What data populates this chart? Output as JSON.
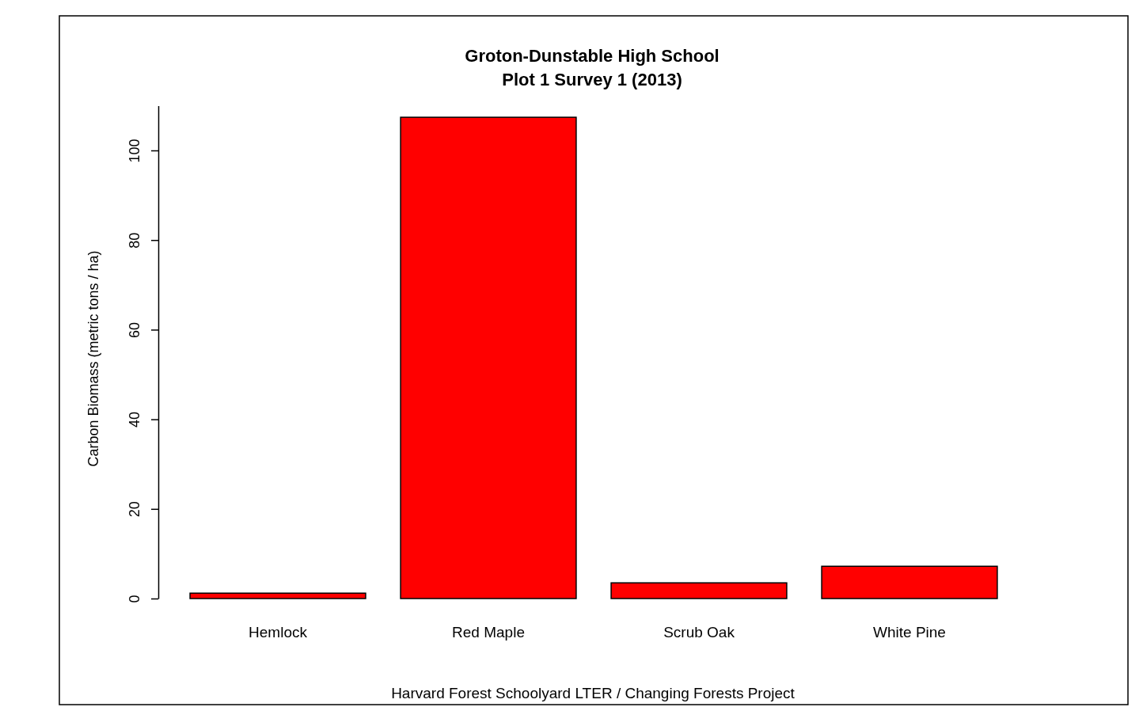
{
  "chart_data": {
    "type": "bar",
    "title": "Groton-Dunstable High School\nPlot 1 Survey 1 (2013)",
    "ylabel": "Carbon Biomass (metric tons / ha)",
    "categories": [
      "Hemlock",
      "Red Maple",
      "Scrub Oak",
      "White Pine"
    ],
    "values": [
      1.2,
      107.4,
      3.5,
      7.2
    ],
    "color": "#ff0000",
    "ylim": [
      0,
      110
    ],
    "yticks": [
      0,
      20,
      40,
      60,
      80,
      100
    ],
    "grid": false,
    "annotations": [
      "Harvard Forest Schoolyard LTER / Changing Forests Project"
    ]
  }
}
